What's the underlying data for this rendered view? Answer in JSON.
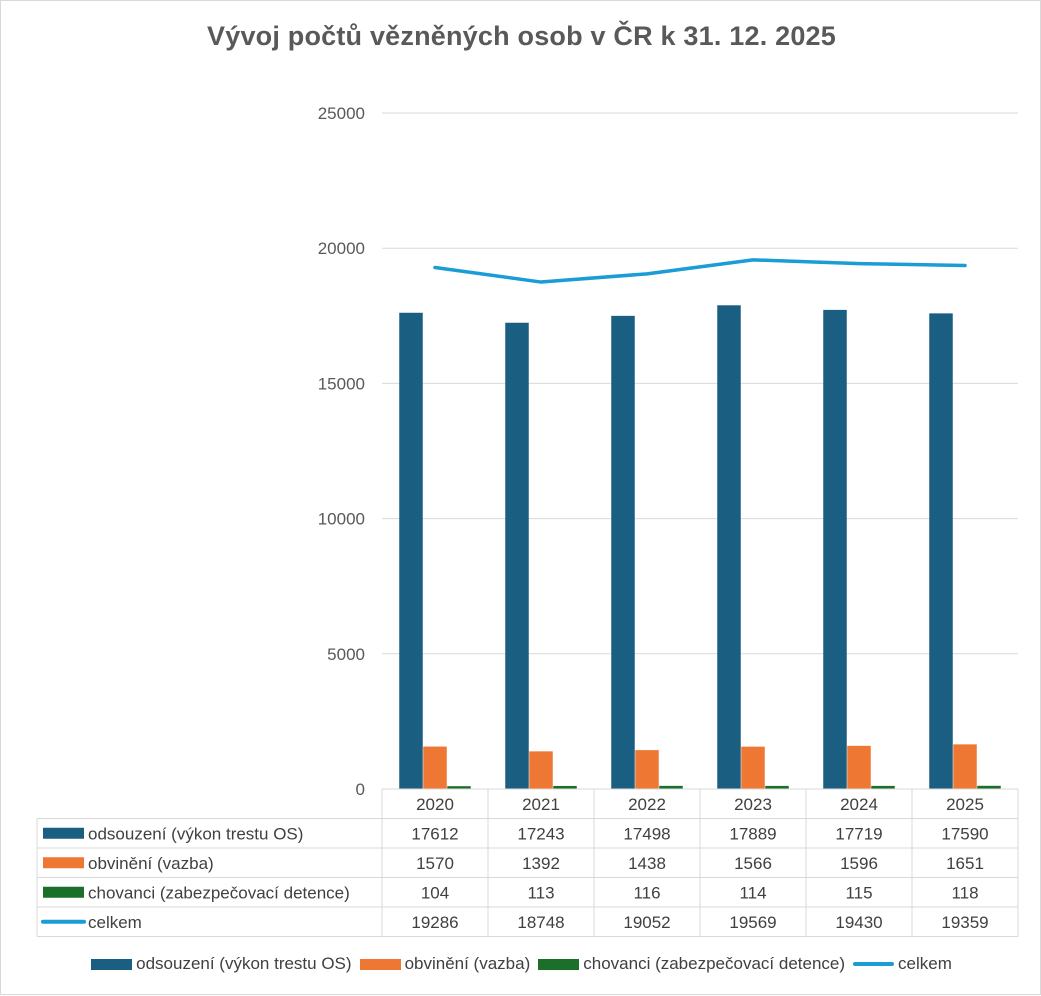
{
  "chart_data": {
    "type": "bar",
    "title": "Vývoj počtů vězněných osob v ČR k 31. 12. 2025",
    "categories": [
      "2020",
      "2021",
      "2022",
      "2023",
      "2024",
      "2025"
    ],
    "series": [
      {
        "name": "odsouzení (výkon trestu OS)",
        "type": "bar",
        "color": "#1a5f82",
        "values": [
          17612,
          17243,
          17498,
          17889,
          17719,
          17590
        ]
      },
      {
        "name": "obvinění (vazba)",
        "type": "bar",
        "color": "#ee7734",
        "values": [
          1570,
          1392,
          1438,
          1566,
          1596,
          1651
        ]
      },
      {
        "name": "chovanci (zabezpečovací detence)",
        "type": "bar",
        "color": "#1c6f2a",
        "values": [
          104,
          113,
          116,
          114,
          115,
          118
        ]
      },
      {
        "name": "celkem",
        "type": "line",
        "color": "#1a9cd6",
        "values": [
          19286,
          18748,
          19052,
          19569,
          19430,
          19359
        ]
      }
    ],
    "ylim": [
      0,
      25000
    ],
    "yticks": [
      0,
      5000,
      10000,
      15000,
      20000,
      25000
    ],
    "grid": true,
    "data_table": true,
    "legend": "bottom"
  }
}
